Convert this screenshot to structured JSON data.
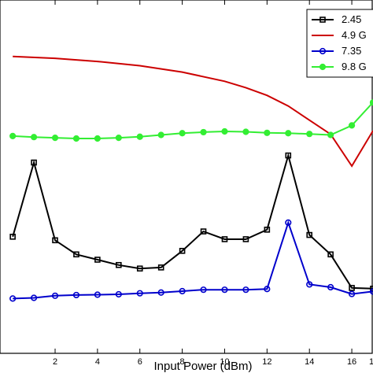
{
  "chart_data": {
    "type": "line",
    "xlabel": "Input Power (dBm)",
    "ylabel": "",
    "xlim": [
      -0.6,
      17.0
    ],
    "ylim": [
      0,
      100
    ],
    "x_ticks": [
      2,
      4,
      6,
      8,
      10,
      12,
      14,
      16
    ],
    "x_tick_labels": [
      "2",
      "4",
      "6",
      "8",
      "10",
      "12",
      "14",
      "16"
    ],
    "edge_tick_label": "1",
    "grid": false,
    "legend_placement": "top-right",
    "series": [
      {
        "name": "2.45",
        "color": "#000000",
        "marker": "square",
        "x": [
          0,
          1,
          2,
          3,
          4,
          5,
          6,
          7,
          8,
          9,
          10,
          11,
          12,
          13,
          14,
          15,
          16,
          17
        ],
        "y": [
          33.0,
          54.0,
          32.0,
          28.0,
          26.5,
          25.0,
          24.0,
          24.3,
          29.0,
          34.5,
          32.3,
          32.3,
          35.0,
          56.0,
          33.5,
          28.0,
          18.5,
          18.3
        ]
      },
      {
        "name": "4.9 G",
        "color": "#cc0000",
        "marker": "none",
        "x": [
          0,
          2,
          4,
          6,
          8,
          10,
          11,
          12,
          13,
          14,
          15,
          16,
          17
        ],
        "y": [
          84.0,
          83.5,
          82.6,
          81.4,
          79.6,
          77.0,
          75.2,
          73.0,
          70.0,
          66.0,
          62.0,
          53.0,
          63.0
        ]
      },
      {
        "name": "7.35",
        "color": "#0000cc",
        "marker": "circle",
        "x": [
          0,
          1,
          2,
          3,
          4,
          5,
          6,
          7,
          8,
          9,
          10,
          11,
          12,
          13,
          14,
          15,
          16,
          17
        ],
        "y": [
          15.5,
          15.7,
          16.3,
          16.5,
          16.6,
          16.7,
          17.0,
          17.2,
          17.6,
          18.0,
          18.0,
          18.0,
          18.2,
          37.0,
          19.5,
          18.7,
          16.8,
          17.5
        ]
      },
      {
        "name": "9.8 G",
        "color": "#33ee33",
        "marker": "circle",
        "x": [
          0,
          1,
          2,
          3,
          4,
          5,
          6,
          7,
          8,
          9,
          10,
          11,
          12,
          13,
          14,
          15,
          16,
          17
        ],
        "y": [
          61.5,
          61.2,
          61.0,
          60.8,
          60.8,
          61.0,
          61.3,
          61.8,
          62.3,
          62.6,
          62.8,
          62.7,
          62.4,
          62.3,
          62.1,
          61.8,
          64.5,
          71.0
        ]
      }
    ]
  }
}
